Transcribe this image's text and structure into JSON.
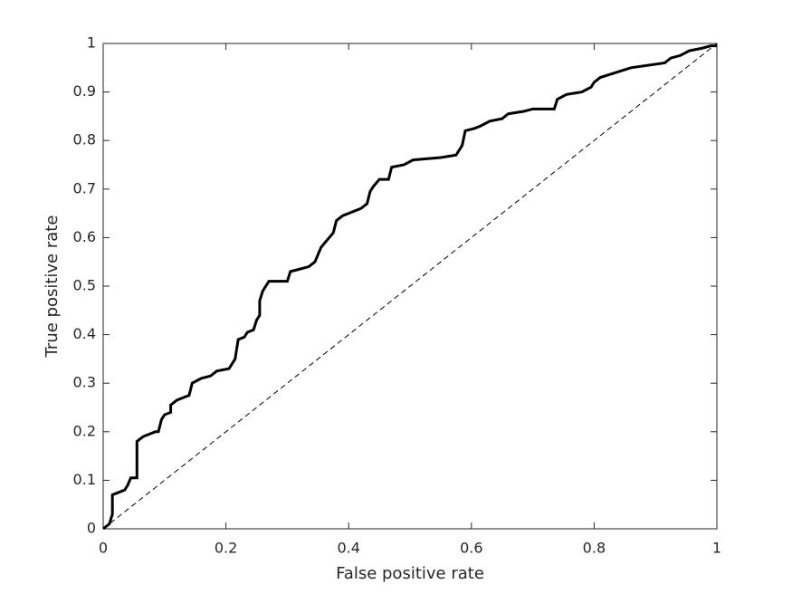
{
  "chart_data": {
    "type": "line",
    "xlabel": "False positive rate",
    "ylabel": "True positive rate",
    "xlim": [
      0,
      1
    ],
    "ylim": [
      0,
      1
    ],
    "xticks": [
      0,
      0.2,
      0.4,
      0.6,
      0.8,
      1
    ],
    "yticks": [
      0,
      0.1,
      0.2,
      0.3,
      0.4,
      0.5,
      0.6,
      0.7,
      0.8,
      0.9,
      1
    ],
    "grid": false,
    "box": true,
    "series": [
      {
        "color": "#000000",
        "line_style": "solid",
        "line_width": 3,
        "x": [
          0,
          0.01,
          0.015,
          0.015,
          0.025,
          0.035,
          0.04,
          0.045,
          0.055,
          0.055,
          0.065,
          0.075,
          0.085,
          0.09,
          0.095,
          0.1,
          0.11,
          0.11,
          0.12,
          0.13,
          0.14,
          0.145,
          0.16,
          0.175,
          0.185,
          0.205,
          0.21,
          0.215,
          0.22,
          0.23,
          0.235,
          0.245,
          0.25,
          0.255,
          0.255,
          0.26,
          0.265,
          0.27,
          0.3,
          0.305,
          0.32,
          0.335,
          0.345,
          0.35,
          0.355,
          0.365,
          0.375,
          0.38,
          0.39,
          0.4,
          0.41,
          0.42,
          0.43,
          0.435,
          0.44,
          0.45,
          0.465,
          0.47,
          0.49,
          0.505,
          0.55,
          0.575,
          0.585,
          0.59,
          0.605,
          0.615,
          0.63,
          0.65,
          0.66,
          0.685,
          0.7,
          0.735,
          0.74,
          0.755,
          0.78,
          0.795,
          0.8,
          0.81,
          0.835,
          0.86,
          0.915,
          0.925,
          0.94,
          0.955,
          0.975,
          0.99,
          1
        ],
        "values": [
          0,
          0.01,
          0.03,
          0.07,
          0.075,
          0.08,
          0.09,
          0.105,
          0.105,
          0.18,
          0.19,
          0.195,
          0.2,
          0.2,
          0.225,
          0.235,
          0.24,
          0.255,
          0.265,
          0.27,
          0.275,
          0.3,
          0.31,
          0.315,
          0.325,
          0.33,
          0.34,
          0.35,
          0.39,
          0.395,
          0.405,
          0.41,
          0.43,
          0.44,
          0.47,
          0.49,
          0.5,
          0.51,
          0.51,
          0.53,
          0.535,
          0.54,
          0.55,
          0.565,
          0.58,
          0.595,
          0.61,
          0.635,
          0.645,
          0.65,
          0.655,
          0.66,
          0.67,
          0.695,
          0.705,
          0.72,
          0.72,
          0.745,
          0.75,
          0.76,
          0.765,
          0.77,
          0.79,
          0.82,
          0.825,
          0.83,
          0.84,
          0.845,
          0.855,
          0.86,
          0.865,
          0.865,
          0.885,
          0.895,
          0.9,
          0.91,
          0.92,
          0.93,
          0.94,
          0.95,
          0.96,
          0.97,
          0.975,
          0.985,
          0.99,
          0.995,
          0.995
        ]
      },
      {
        "color": "#000000",
        "line_style": "dashed",
        "line_width": 1,
        "x": [
          0,
          1
        ],
        "values": [
          0,
          1
        ]
      }
    ]
  }
}
